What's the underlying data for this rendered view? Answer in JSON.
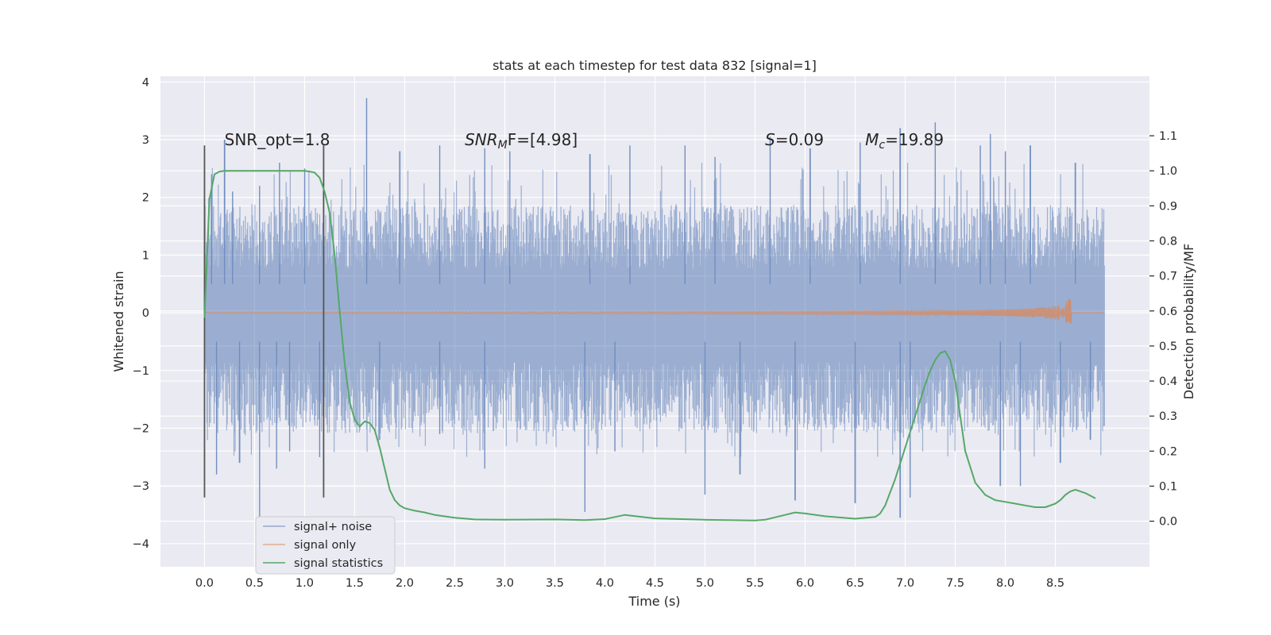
{
  "chart_data": {
    "type": "line",
    "title": "stats at each timestep for test data 832 [signal=1]",
    "xlabel": "Time (s)",
    "ylabel": "Whitened strain",
    "ylabel_right": "Detection probability/MF",
    "xlim": [
      -0.44,
      9.44
    ],
    "ylim": [
      -4.4,
      4.1
    ],
    "ylim_right": [
      -0.13,
      1.27
    ],
    "xticks": [
      0.0,
      0.5,
      1.0,
      1.5,
      2.0,
      2.5,
      3.0,
      3.5,
      4.0,
      4.5,
      5.0,
      5.5,
      6.0,
      6.5,
      7.0,
      7.5,
      8.0,
      8.5
    ],
    "xtick_labels": [
      "0.0",
      "0.5",
      "1.0",
      "1.5",
      "2.0",
      "2.5",
      "3.0",
      "3.5",
      "4.0",
      "4.5",
      "5.0",
      "5.5",
      "6.0",
      "6.5",
      "7.0",
      "7.5",
      "8.0",
      "8.5"
    ],
    "yticks": [
      4,
      3,
      2,
      1,
      0,
      -1,
      -2,
      -3,
      -4
    ],
    "ytick_labels": [
      "4",
      "3",
      "2",
      "1",
      "0",
      "−1",
      "−2",
      "−3",
      "−4"
    ],
    "yticks_right": [
      1.1,
      1.0,
      0.9,
      0.8,
      0.7,
      0.6,
      0.5,
      0.4,
      0.3,
      0.2,
      0.1,
      0.0
    ],
    "ytick_labels_right": [
      "1.1",
      "1.0",
      "0.9",
      "0.8",
      "0.7",
      "0.6",
      "0.5",
      "0.4",
      "0.3",
      "0.2",
      "0.1",
      "0.0"
    ],
    "grid": true,
    "legend": {
      "position": "bottom-left",
      "entries": [
        "signal+ noise",
        "signal only",
        "signal statistics"
      ]
    },
    "colors": {
      "noise": "#4c72b0",
      "signal": "#dd8452",
      "stats": "#55a868",
      "background": "#eaeaf2",
      "vline": "#555555"
    },
    "series": [
      {
        "name": "signal+ noise",
        "axis": "left",
        "x_range": [
          0.0,
          8.99
        ],
        "band": [
          -1.9,
          1.7
        ],
        "peaks_high": [
          [
            0.07,
            2.4
          ],
          [
            0.2,
            3.0
          ],
          [
            0.28,
            2.1
          ],
          [
            0.55,
            2.2
          ],
          [
            0.75,
            2.6
          ],
          [
            1.0,
            2.5
          ],
          [
            1.62,
            3.72
          ],
          [
            1.95,
            2.8
          ],
          [
            2.35,
            2.9
          ],
          [
            2.8,
            2.85
          ],
          [
            3.05,
            2.8
          ],
          [
            3.85,
            2.75
          ],
          [
            4.25,
            2.9
          ],
          [
            4.8,
            2.9
          ],
          [
            5.1,
            2.7
          ],
          [
            5.65,
            3.05
          ],
          [
            6.05,
            2.85
          ],
          [
            6.55,
            2.95
          ],
          [
            6.95,
            3.2
          ],
          [
            7.3,
            3.3
          ],
          [
            7.75,
            2.9
          ],
          [
            7.85,
            3.1
          ],
          [
            8.0,
            2.8
          ],
          [
            8.25,
            2.9
          ],
          [
            8.7,
            2.6
          ]
        ],
        "peaks_low": [
          [
            0.12,
            -2.8
          ],
          [
            0.35,
            -2.6
          ],
          [
            0.55,
            -3.6
          ],
          [
            0.72,
            -2.7
          ],
          [
            0.85,
            -2.4
          ],
          [
            1.15,
            -2.5
          ],
          [
            1.75,
            -2.2
          ],
          [
            2.35,
            -2.1
          ],
          [
            2.8,
            -2.7
          ],
          [
            3.8,
            -3.45
          ],
          [
            4.1,
            -2.4
          ],
          [
            5.0,
            -3.15
          ],
          [
            5.35,
            -2.8
          ],
          [
            5.9,
            -3.25
          ],
          [
            6.5,
            -3.3
          ],
          [
            6.95,
            -3.55
          ],
          [
            7.05,
            -3.2
          ],
          [
            7.95,
            -3.0
          ],
          [
            8.15,
            -3.0
          ],
          [
            8.55,
            -2.6
          ],
          [
            8.85,
            -2.2
          ]
        ]
      },
      {
        "name": "signal only",
        "axis": "left",
        "x_range": [
          0.0,
          8.99
        ],
        "merger_time": 8.66,
        "peak_amplitude": 0.34
      },
      {
        "name": "signal statistics",
        "axis": "right",
        "x": [
          0.0,
          0.05,
          0.1,
          0.15,
          0.2,
          0.3,
          0.5,
          0.7,
          0.9,
          1.0,
          1.05,
          1.1,
          1.15,
          1.2,
          1.25,
          1.3,
          1.35,
          1.4,
          1.45,
          1.5,
          1.55,
          1.6,
          1.65,
          1.7,
          1.75,
          1.8,
          1.85,
          1.9,
          1.95,
          2.0,
          2.1,
          2.2,
          2.3,
          2.5,
          2.7,
          3.0,
          3.5,
          3.8,
          4.0,
          4.2,
          4.5,
          5.0,
          5.5,
          5.6,
          5.8,
          5.9,
          6.0,
          6.2,
          6.5,
          6.7,
          6.75,
          6.8,
          6.9,
          7.0,
          7.1,
          7.2,
          7.25,
          7.3,
          7.35,
          7.4,
          7.45,
          7.5,
          7.6,
          7.7,
          7.8,
          7.9,
          8.0,
          8.1,
          8.2,
          8.3,
          8.4,
          8.5,
          8.55,
          8.6,
          8.65,
          8.7,
          8.8,
          8.9
        ],
        "values": [
          0.58,
          0.92,
          0.99,
          0.998,
          1.0,
          1.0,
          1.0,
          1.0,
          1.0,
          1.0,
          0.998,
          0.995,
          0.98,
          0.94,
          0.88,
          0.76,
          0.6,
          0.45,
          0.34,
          0.29,
          0.27,
          0.285,
          0.28,
          0.26,
          0.21,
          0.15,
          0.09,
          0.06,
          0.045,
          0.037,
          0.03,
          0.025,
          0.018,
          0.01,
          0.005,
          0.004,
          0.005,
          0.003,
          0.006,
          0.018,
          0.008,
          0.004,
          0.002,
          0.004,
          0.018,
          0.025,
          0.022,
          0.014,
          0.007,
          0.012,
          0.022,
          0.045,
          0.12,
          0.21,
          0.3,
          0.39,
          0.43,
          0.46,
          0.48,
          0.485,
          0.46,
          0.4,
          0.2,
          0.11,
          0.075,
          0.06,
          0.055,
          0.05,
          0.045,
          0.04,
          0.04,
          0.05,
          0.06,
          0.075,
          0.085,
          0.09,
          0.08,
          0.065
        ]
      }
    ],
    "vlines": [
      0.0,
      1.19
    ],
    "vline_range": [
      -3.2,
      2.9
    ],
    "annotations": [
      {
        "x": 0.2,
        "y": 3.0,
        "text": "SNR_opt=1.8",
        "kind": "plain"
      },
      {
        "x": 2.6,
        "y": 3.0,
        "main": "SNR",
        "sub": "M",
        "rest": "F=[4.98]",
        "kind": "sub"
      },
      {
        "x": 5.6,
        "y": 3.0,
        "main": "S",
        "rest": "=0.09",
        "kind": "italic"
      },
      {
        "x": 6.6,
        "y": 3.0,
        "main": "M",
        "sub": "c",
        "rest": "=19.89",
        "kind": "sub"
      }
    ]
  }
}
